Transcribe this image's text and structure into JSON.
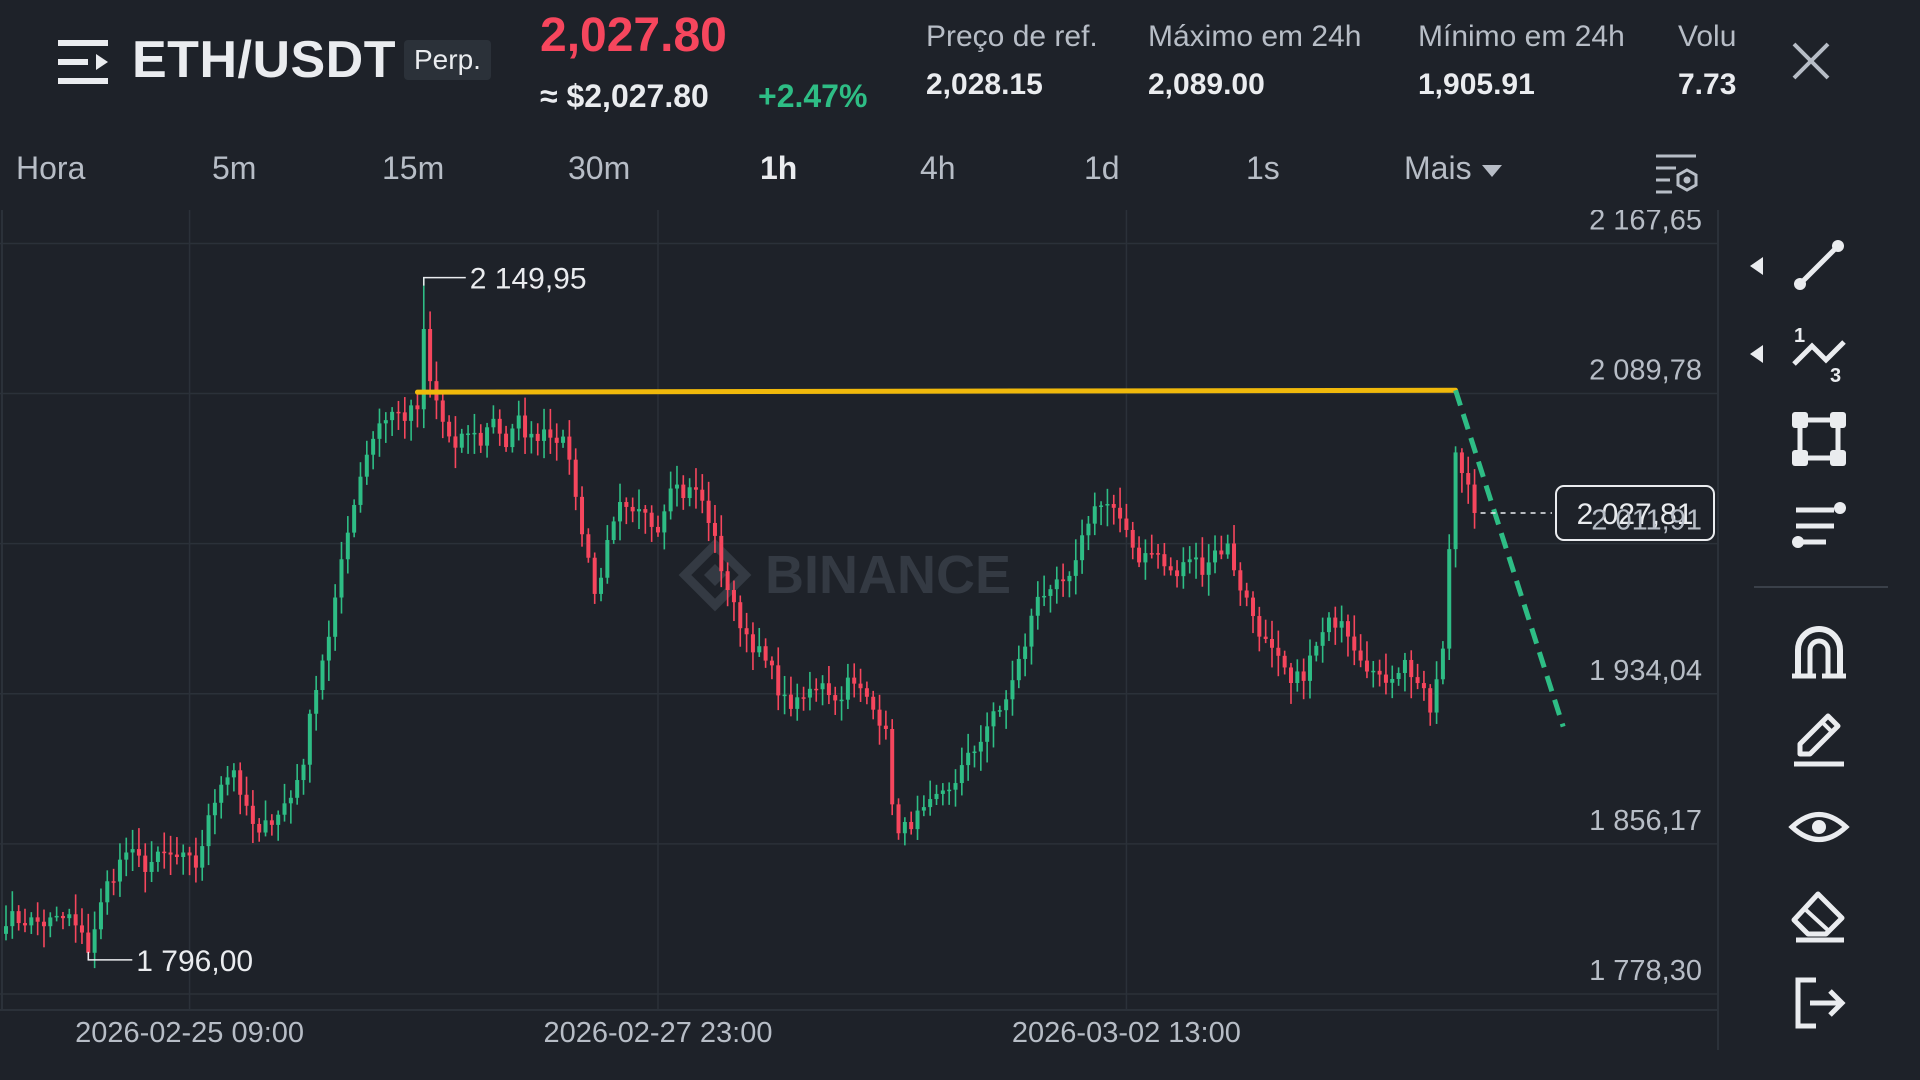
{
  "header": {
    "symbol": "ETH/USDT",
    "contract_type": "Perp.",
    "last_price": "2,027.80",
    "usd_price": "≈ $2,027.80",
    "change_pct": "+2.47%",
    "stats": [
      {
        "label": "Preço de ref.",
        "value": "2,028.15"
      },
      {
        "label": "Máximo em 24h",
        "value": "2,089.00"
      },
      {
        "label": "Mínimo em 24h",
        "value": "1,905.91"
      },
      {
        "label": "Volu",
        "value": "7.73"
      }
    ]
  },
  "tabs": [
    {
      "label": "Hora",
      "active": false
    },
    {
      "label": "5m",
      "active": false
    },
    {
      "label": "15m",
      "active": false
    },
    {
      "label": "30m",
      "active": false
    },
    {
      "label": "1h",
      "active": true
    },
    {
      "label": "4h",
      "active": false
    },
    {
      "label": "1d",
      "active": false
    },
    {
      "label": "1s",
      "active": false
    },
    {
      "label": "Mais",
      "active": false
    }
  ],
  "colors": {
    "background": "#1e2229",
    "up": "#2ebd85",
    "down": "#f6465d",
    "grid": "#2b3139",
    "trendline": "#f0b90b",
    "projection": "#2ebd85",
    "text_secondary": "#b7bdc6"
  },
  "chart_data": {
    "type": "candlestick",
    "watermark": "BINANCE",
    "y_ticks": [
      "2 167,65",
      "2 089,78",
      "2 011,91",
      "1 934,04",
      "1 856,17",
      "1 778,30"
    ],
    "y_tick_values": [
      2167.65,
      2089.78,
      2011.91,
      1934.04,
      1856.17,
      1778.3
    ],
    "x_ticks": [
      "2026-02-25 09:00",
      "2026-02-27 23:00",
      "2026-03-02 13:00"
    ],
    "ylim": [
      1770,
      2185
    ],
    "current_price_label": "2 027,81",
    "current_price": 2027.81,
    "max_label": "2 149,95",
    "min_label": "1 796,00",
    "high_marker": 2149.95,
    "low_marker": 1796.0,
    "resistance_line": {
      "price_start": 2090.5,
      "price_end": 2091.5
    },
    "projection": {
      "from_price": 2091.5,
      "to_price": 1917
    },
    "waypoints": [
      [
        0,
        1818
      ],
      [
        6,
        1815
      ],
      [
        10,
        1818
      ],
      [
        13,
        1802
      ],
      [
        16,
        1835
      ],
      [
        19,
        1852
      ],
      [
        22,
        1845
      ],
      [
        25,
        1850
      ],
      [
        28,
        1848
      ],
      [
        30,
        1845
      ],
      [
        32,
        1868
      ],
      [
        34,
        1890
      ],
      [
        36,
        1895
      ],
      [
        38,
        1872
      ],
      [
        40,
        1860
      ],
      [
        42,
        1870
      ],
      [
        45,
        1880
      ],
      [
        47,
        1900
      ],
      [
        49,
        1940
      ],
      [
        51,
        1965
      ],
      [
        53,
        2000
      ],
      [
        55,
        2035
      ],
      [
        57,
        2060
      ],
      [
        59,
        2075
      ],
      [
        61,
        2080
      ],
      [
        63,
        2078
      ],
      [
        65,
        2082
      ],
      [
        66,
        2120
      ],
      [
        67,
        2095
      ],
      [
        69,
        2075
      ],
      [
        71,
        2060
      ],
      [
        73,
        2070
      ],
      [
        75,
        2065
      ],
      [
        77,
        2078
      ],
      [
        79,
        2063
      ],
      [
        81,
        2075
      ],
      [
        83,
        2066
      ],
      [
        85,
        2072
      ],
      [
        87,
        2068
      ],
      [
        89,
        2058
      ],
      [
        90,
        2035
      ],
      [
        92,
        2005
      ],
      [
        93,
        1985
      ],
      [
        95,
        2010
      ],
      [
        97,
        2030
      ],
      [
        99,
        2025
      ],
      [
        101,
        2030
      ],
      [
        103,
        2020
      ],
      [
        105,
        2045
      ],
      [
        107,
        2038
      ],
      [
        109,
        2040
      ],
      [
        111,
        2025
      ],
      [
        113,
        2000
      ],
      [
        115,
        1978
      ],
      [
        117,
        1965
      ],
      [
        119,
        1955
      ],
      [
        121,
        1945
      ],
      [
        123,
        1930
      ],
      [
        125,
        1928
      ],
      [
        127,
        1935
      ],
      [
        129,
        1942
      ],
      [
        131,
        1930
      ],
      [
        133,
        1940
      ],
      [
        135,
        1935
      ],
      [
        137,
        1930
      ],
      [
        139,
        1912
      ],
      [
        140,
        1880
      ],
      [
        141,
        1860
      ],
      [
        143,
        1868
      ],
      [
        145,
        1872
      ],
      [
        147,
        1878
      ],
      [
        149,
        1885
      ],
      [
        151,
        1895
      ],
      [
        153,
        1905
      ],
      [
        155,
        1918
      ],
      [
        157,
        1925
      ],
      [
        159,
        1940
      ],
      [
        161,
        1960
      ],
      [
        163,
        1985
      ],
      [
        165,
        1990
      ],
      [
        167,
        1988
      ],
      [
        169,
        2000
      ],
      [
        171,
        2025
      ],
      [
        173,
        2035
      ],
      [
        175,
        2030
      ],
      [
        177,
        2015
      ],
      [
        179,
        2005
      ],
      [
        181,
        2010
      ],
      [
        183,
        2000
      ],
      [
        185,
        1995
      ],
      [
        187,
        2005
      ],
      [
        189,
        2000
      ],
      [
        191,
        2008
      ],
      [
        193,
        2010
      ],
      [
        195,
        1990
      ],
      [
        197,
        1975
      ],
      [
        199,
        1960
      ],
      [
        201,
        1950
      ],
      [
        203,
        1938
      ],
      [
        205,
        1945
      ],
      [
        207,
        1958
      ],
      [
        209,
        1970
      ],
      [
        211,
        1975
      ],
      [
        213,
        1960
      ],
      [
        215,
        1950
      ],
      [
        217,
        1940
      ],
      [
        219,
        1945
      ],
      [
        221,
        1950
      ],
      [
        223,
        1940
      ],
      [
        225,
        1925
      ],
      [
        227,
        1955
      ],
      [
        228,
        2010
      ],
      [
        229,
        2060
      ],
      [
        231,
        2045
      ],
      [
        232,
        2030
      ]
    ]
  },
  "toolbar": {
    "tools": [
      {
        "name": "trend-line",
        "has_caret": true
      },
      {
        "name": "fibonacci",
        "has_caret": true
      },
      {
        "name": "rectangle",
        "has_caret": false
      },
      {
        "name": "text-settings",
        "has_caret": false
      },
      {
        "name": "magnet",
        "has_caret": false
      },
      {
        "name": "pencil",
        "has_caret": false
      },
      {
        "name": "eye",
        "has_caret": false
      },
      {
        "name": "eraser",
        "has_caret": false
      },
      {
        "name": "exit",
        "has_caret": false
      }
    ]
  }
}
